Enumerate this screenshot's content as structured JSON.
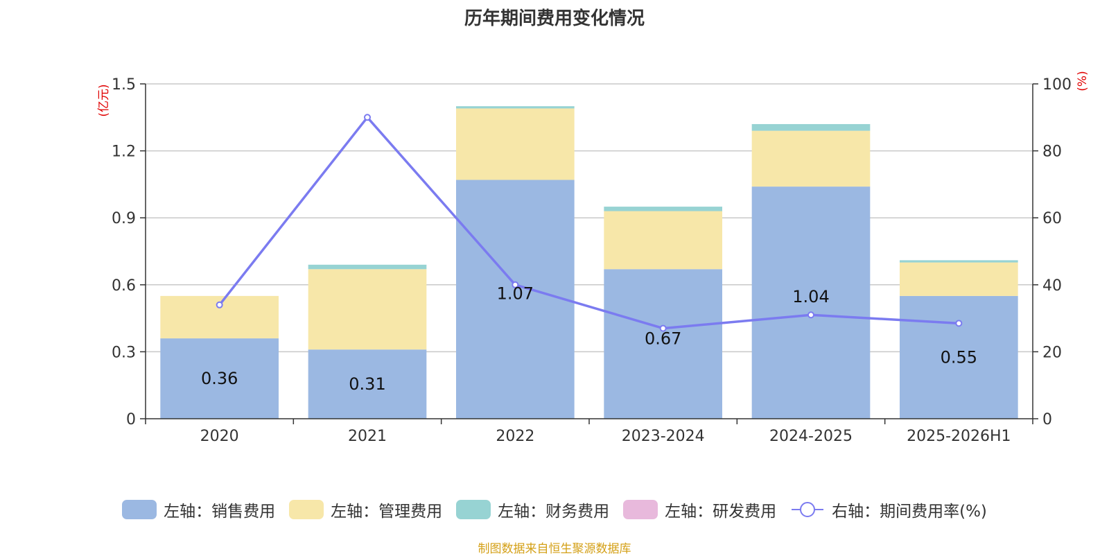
{
  "chart_data": {
    "type": "bar",
    "title": "历年期间费用变化情况",
    "categories": [
      "2020",
      "2021",
      "2022",
      "2023-2024",
      "2024-2025",
      "2025-2026H1"
    ],
    "left_axis": {
      "unit": "(亿元)",
      "ylim": [
        0,
        1.5
      ],
      "ticks": [
        0,
        0.3,
        0.6,
        0.9,
        1.2,
        1.5
      ],
      "tick_labels": [
        "0",
        "0.3",
        "0.6",
        "0.9",
        "1.2",
        "1.5"
      ]
    },
    "right_axis": {
      "unit": "(%)",
      "ylim": [
        0,
        100
      ],
      "ticks": [
        0,
        20,
        40,
        60,
        80,
        100
      ],
      "tick_labels": [
        "0",
        "20",
        "40",
        "60",
        "80",
        "100"
      ]
    },
    "series": [
      {
        "name": "左轴：销售费用",
        "type": "bar",
        "axis": "left",
        "color": "#9bb8e2",
        "values": [
          0.36,
          0.31,
          1.07,
          0.67,
          1.04,
          0.55
        ],
        "labels": [
          "0.36",
          "0.31",
          "1.07",
          "0.67",
          "1.04",
          "0.55"
        ]
      },
      {
        "name": "左轴：管理费用",
        "type": "bar",
        "axis": "left",
        "color": "#f7e7a9",
        "values": [
          0.19,
          0.36,
          0.32,
          0.26,
          0.25,
          0.15
        ]
      },
      {
        "name": "左轴：财务费用",
        "type": "bar",
        "axis": "left",
        "color": "#97d3d3",
        "values": [
          0.0,
          0.02,
          0.01,
          0.02,
          0.03,
          0.01
        ]
      },
      {
        "name": "左轴：研发费用",
        "type": "bar",
        "axis": "left",
        "color": "#e8b9dc",
        "values": [
          0,
          0,
          0,
          0,
          0,
          0
        ]
      },
      {
        "name": "右轴：期间费用率(%)",
        "type": "line",
        "axis": "right",
        "color": "#7b7bf0",
        "values": [
          34,
          90,
          40,
          27,
          31,
          28.5
        ]
      }
    ],
    "grid": true,
    "legend_position": "bottom"
  },
  "source": "制图数据来自恒生聚源数据库"
}
